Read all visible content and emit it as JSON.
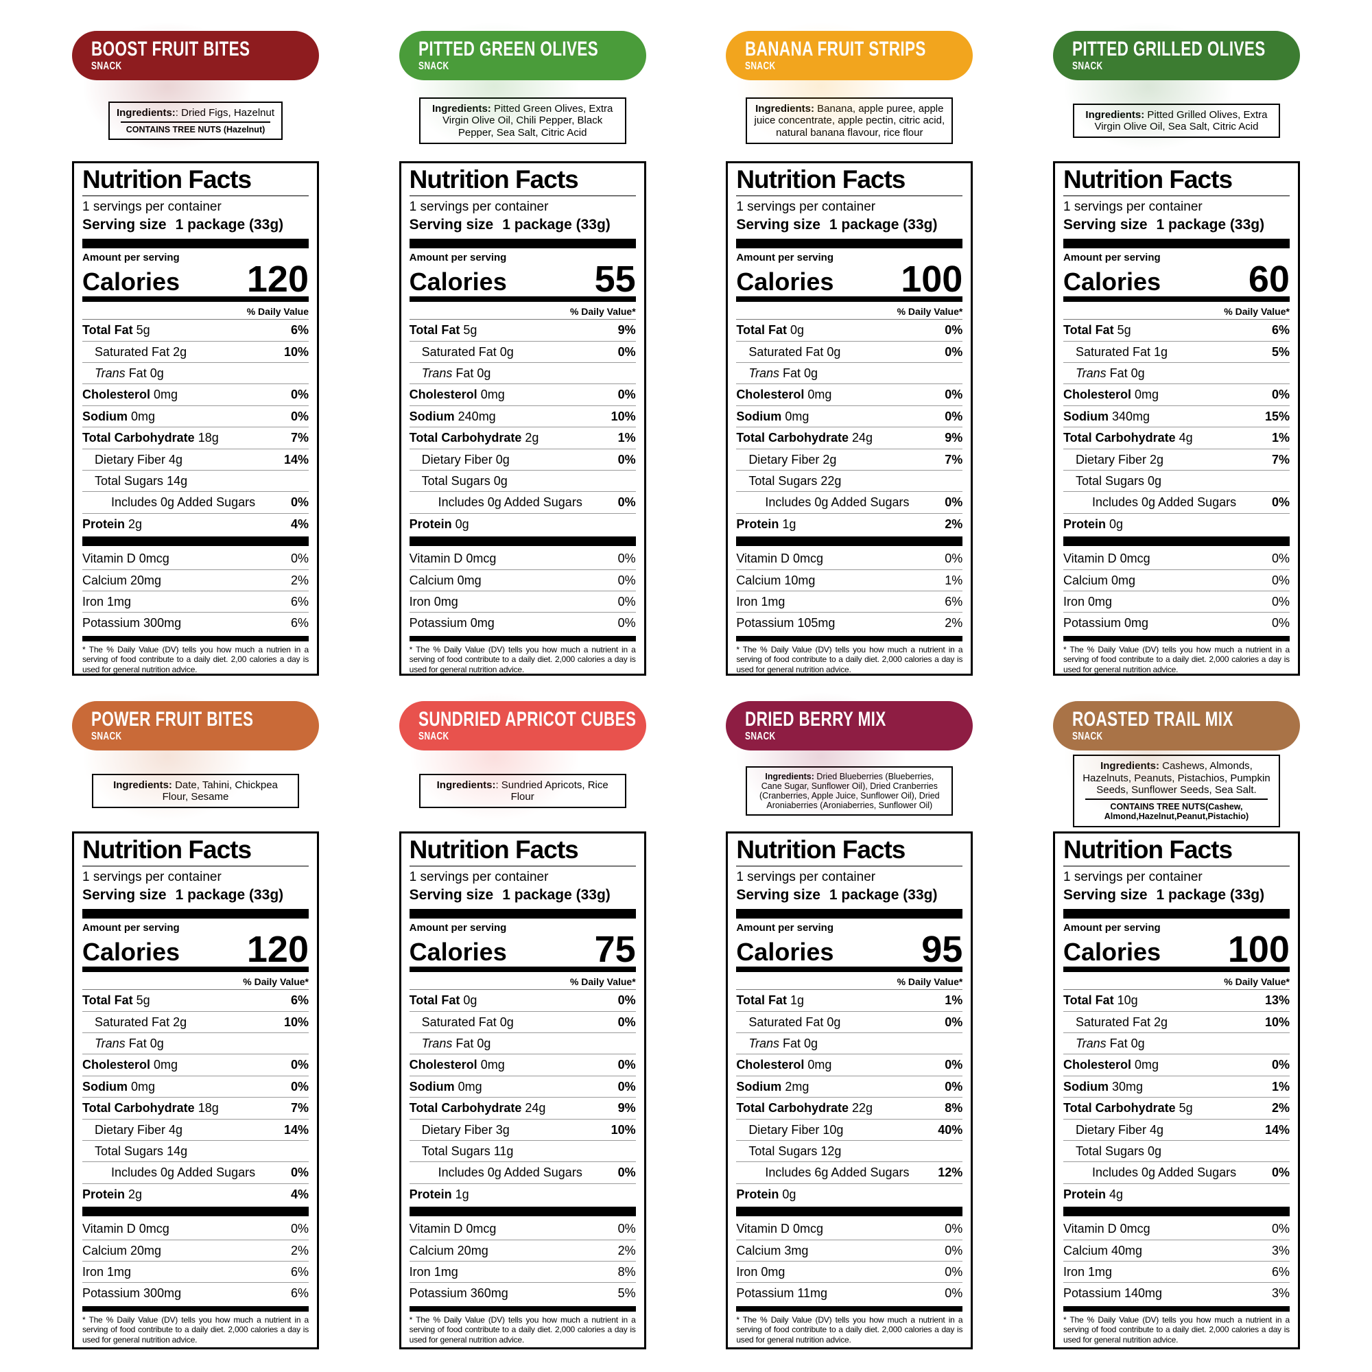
{
  "shared": {
    "snack_tag": "SNACK",
    "ing_label": "Ingredients:",
    "panel_title": "Nutrition Facts",
    "servings_line": "1 servings per container",
    "serving_size_label": "Serving size",
    "serving_size_value": "1 package (33g)",
    "amount_per_serving": "Amount per serving",
    "calories_label": "Calories",
    "dv_header_star": "% Daily Value*",
    "dv_header_plain": "% Daily Value",
    "footnote_standard": "* The % Daily Value (DV) tells you how much a nutrient in a serving of food contribute to a daily diet. 2,000 calories a day is used for general nutrition advice.",
    "footnote_typo": "* The % Daily Value (DV) tells you how much a nutrien in a serving of food contribute to a daily diet. 2,00 calories a day is used for general nutrition advice.",
    "row_defs": [
      {
        "n": "Total Fat",
        "bold": true,
        "ind": 0
      },
      {
        "n": "Saturated Fat",
        "bold": false,
        "ind": 1
      },
      {
        "i": "Trans",
        "n": "Fat",
        "bold": false,
        "ind": 1
      },
      {
        "n": "Cholesterol",
        "bold": true,
        "ind": 0
      },
      {
        "n": "Sodium",
        "bold": true,
        "ind": 0
      },
      {
        "n": "Total Carbohydrate",
        "bold": true,
        "ind": 0
      },
      {
        "n": "Dietary Fiber",
        "bold": false,
        "ind": 1
      },
      {
        "n": "Total Sugars",
        "bold": false,
        "ind": 1
      },
      {
        "n": "Includes",
        "bold": false,
        "ind": 2
      },
      {
        "n": "Protein",
        "bold": true,
        "ind": 0
      }
    ],
    "vit_names": [
      "Vitamin D",
      "Calcium",
      "Iron",
      "Potassium"
    ]
  },
  "labels": [
    {
      "title": "BOOST FRUIT BITES",
      "color": "#8e1c1f",
      "ingredients": ": Dried Figs, Hazelnut",
      "allergen": "CONTAINS TREE NUTS (Hazelnut)",
      "dv_header": "dv_header_plain",
      "footnote": "footnote_typo",
      "calories": "120",
      "rows": [
        {
          "a": "5g",
          "dv": "6%"
        },
        {
          "a": "2g",
          "dv": "10%"
        },
        {
          "a": "0g",
          "dv": ""
        },
        {
          "a": "0mg",
          "dv": "0%"
        },
        {
          "a": "0mg",
          "dv": "0%"
        },
        {
          "a": "18g",
          "dv": "7%"
        },
        {
          "a": "4g",
          "dv": "14%"
        },
        {
          "a": "14g",
          "dv": ""
        },
        {
          "a": "0g Added Sugars",
          "dv": "0%"
        },
        {
          "a": "2g",
          "dv": "4%"
        }
      ],
      "vits": [
        {
          "a": "0mcg",
          "dv": "0%"
        },
        {
          "a": "20mg",
          "dv": "2%"
        },
        {
          "a": "1mg",
          "dv": "6%"
        },
        {
          "a": "300mg",
          "dv": "6%"
        }
      ]
    },
    {
      "title": "PITTED GREEN OLIVES",
      "color": "#4a9c3a",
      "ingredients": " Pitted Green Olives, Extra Virgin Olive Oil, Chili Pepper, Black Pepper, Sea Salt, Citric Acid",
      "allergen": null,
      "dv_header": "dv_header_star",
      "footnote": "footnote_standard",
      "calories": "55",
      "rows": [
        {
          "a": "5g",
          "dv": "9%"
        },
        {
          "a": "0g",
          "dv": "0%"
        },
        {
          "a": "0g",
          "dv": ""
        },
        {
          "a": "0mg",
          "dv": "0%"
        },
        {
          "a": "240mg",
          "dv": "10%"
        },
        {
          "a": "2g",
          "dv": "1%"
        },
        {
          "a": "0g",
          "dv": "0%"
        },
        {
          "a": "0g",
          "dv": ""
        },
        {
          "a": "0g Added Sugars",
          "dv": "0%"
        },
        {
          "a": "0g",
          "dv": ""
        }
      ],
      "vits": [
        {
          "a": "0mcg",
          "dv": "0%"
        },
        {
          "a": "0mg",
          "dv": "0%"
        },
        {
          "a": "0mg",
          "dv": "0%"
        },
        {
          "a": "0mg",
          "dv": "0%"
        }
      ]
    },
    {
      "title": "BANANA FRUIT STRIPS",
      "color": "#f2a51e",
      "ingredients": " Banana, apple puree, apple juice concentrate, apple pectin, citric acid, natural banana flavour, rice flour",
      "allergen": null,
      "dv_header": "dv_header_star",
      "footnote": "footnote_standard",
      "calories": "100",
      "rows": [
        {
          "a": "0g",
          "dv": "0%"
        },
        {
          "a": "0g",
          "dv": "0%"
        },
        {
          "a": "0g",
          "dv": ""
        },
        {
          "a": "0mg",
          "dv": "0%"
        },
        {
          "a": "0mg",
          "dv": "0%"
        },
        {
          "a": "24g",
          "dv": "9%"
        },
        {
          "a": "2g",
          "dv": "7%"
        },
        {
          "a": "22g",
          "dv": ""
        },
        {
          "a": "0g Added Sugars",
          "dv": "0%"
        },
        {
          "a": "1g",
          "dv": "2%"
        }
      ],
      "vits": [
        {
          "a": "0mcg",
          "dv": "0%"
        },
        {
          "a": "10mg",
          "dv": "1%"
        },
        {
          "a": "1mg",
          "dv": "6%"
        },
        {
          "a": "105mg",
          "dv": "2%"
        }
      ]
    },
    {
      "title": "PITTED GRILLED OLIVES",
      "color": "#3c7c31",
      "ingredients": " Pitted Grilled Olives, Extra Virgin Olive Oil, Sea Salt, Citric Acid",
      "allergen": null,
      "dv_header": "dv_header_star",
      "footnote": "footnote_standard",
      "calories": "60",
      "rows": [
        {
          "a": "5g",
          "dv": "6%"
        },
        {
          "a": "1g",
          "dv": "5%"
        },
        {
          "a": "0g",
          "dv": ""
        },
        {
          "a": "0mg",
          "dv": "0%"
        },
        {
          "a": "340mg",
          "dv": "15%"
        },
        {
          "a": "4g",
          "dv": "1%"
        },
        {
          "a": "2g",
          "dv": "7%"
        },
        {
          "a": "0g",
          "dv": ""
        },
        {
          "a": "0g Added Sugars",
          "dv": "0%"
        },
        {
          "a": "0g",
          "dv": ""
        }
      ],
      "vits": [
        {
          "a": "0mcg",
          "dv": "0%"
        },
        {
          "a": "0mg",
          "dv": "0%"
        },
        {
          "a": "0mg",
          "dv": "0%"
        },
        {
          "a": "0mg",
          "dv": "0%"
        }
      ]
    },
    {
      "title": "POWER FRUIT BITES",
      "color": "#c96a38",
      "ingredients": " Date, Tahini, Chickpea Flour, Sesame",
      "allergen": null,
      "dv_header": "dv_header_star",
      "footnote": "footnote_standard",
      "calories": "120",
      "rows": [
        {
          "a": "5g",
          "dv": "6%"
        },
        {
          "a": "2g",
          "dv": "10%"
        },
        {
          "a": "0g",
          "dv": ""
        },
        {
          "a": "0mg",
          "dv": "0%"
        },
        {
          "a": "0mg",
          "dv": "0%"
        },
        {
          "a": "18g",
          "dv": "7%"
        },
        {
          "a": "4g",
          "dv": "14%"
        },
        {
          "a": "14g",
          "dv": ""
        },
        {
          "a": "0g Added Sugars",
          "dv": "0%"
        },
        {
          "a": "2g",
          "dv": "4%"
        }
      ],
      "vits": [
        {
          "a": "0mcg",
          "dv": "0%"
        },
        {
          "a": "20mg",
          "dv": "2%"
        },
        {
          "a": "1mg",
          "dv": "6%"
        },
        {
          "a": "300mg",
          "dv": "6%"
        }
      ]
    },
    {
      "title": "SUNDRIED APRICOT CUBES",
      "color": "#e8524d",
      "ingredients": ": Sundried Apricots, Rice Flour",
      "allergen": null,
      "dv_header": "dv_header_star",
      "footnote": "footnote_standard",
      "calories": "75",
      "rows": [
        {
          "a": "0g",
          "dv": "0%"
        },
        {
          "a": "0g",
          "dv": "0%"
        },
        {
          "a": "0g",
          "dv": ""
        },
        {
          "a": "0mg",
          "dv": "0%"
        },
        {
          "a": "0mg",
          "dv": "0%"
        },
        {
          "a": "24g",
          "dv": "9%"
        },
        {
          "a": "3g",
          "dv": "10%"
        },
        {
          "a": "11g",
          "dv": ""
        },
        {
          "a": "0g Added Sugars",
          "dv": "0%"
        },
        {
          "a": "1g",
          "dv": ""
        }
      ],
      "vits": [
        {
          "a": "0mcg",
          "dv": "0%"
        },
        {
          "a": "20mg",
          "dv": "2%"
        },
        {
          "a": "1mg",
          "dv": "8%"
        },
        {
          "a": "360mg",
          "dv": "5%"
        }
      ]
    },
    {
      "title": "DRIED BERRY MIX",
      "color": "#8e1d43",
      "ingredients": " Dried Blueberries (Blueberries, Cane Sugar, Sunflower Oil), Dried Cranberries (Cranberries, Apple Juice, Sunflower Oil), Dried Aroniaberries (Aroniaberries, Sunflower Oil)",
      "allergen": null,
      "dv_header": "dv_header_star",
      "footnote": "footnote_standard",
      "calories": "95",
      "rows": [
        {
          "a": "1g",
          "dv": "1%"
        },
        {
          "a": "0g",
          "dv": "0%"
        },
        {
          "a": "0g",
          "dv": ""
        },
        {
          "a": "0mg",
          "dv": "0%"
        },
        {
          "a": "2mg",
          "dv": "0%"
        },
        {
          "a": "22g",
          "dv": "8%"
        },
        {
          "a": "10g",
          "dv": "40%"
        },
        {
          "a": "12g",
          "dv": ""
        },
        {
          "a": "6g Added Sugars",
          "dv": "12%"
        },
        {
          "a": "0g",
          "dv": ""
        }
      ],
      "vits": [
        {
          "a": "0mcg",
          "dv": "0%"
        },
        {
          "a": "3mg",
          "dv": "0%"
        },
        {
          "a": "0mg",
          "dv": "0%"
        },
        {
          "a": "11mg",
          "dv": "0%"
        }
      ]
    },
    {
      "title": "ROASTED TRAIL MIX",
      "color": "#a97347",
      "ingredients": " Cashews, Almonds, Hazelnuts, Peanuts, Pistachios, Pumpkin Seeds, Sunflower Seeds, Sea Salt.",
      "allergen": "CONTAINS TREE NUTS(Cashew, Almond,Hazelnut,Peanut,Pistachio)",
      "dv_header": "dv_header_star",
      "footnote": "footnote_standard",
      "calories": "100",
      "rows": [
        {
          "a": "10g",
          "dv": "13%"
        },
        {
          "a": "2g",
          "dv": "10%"
        },
        {
          "a": "0g",
          "dv": ""
        },
        {
          "a": "0mg",
          "dv": "0%"
        },
        {
          "a": "30mg",
          "dv": "1%"
        },
        {
          "a": "5g",
          "dv": "2%"
        },
        {
          "a": "4g",
          "dv": "14%"
        },
        {
          "a": "0g",
          "dv": ""
        },
        {
          "a": "0g Added Sugars",
          "dv": "0%"
        },
        {
          "a": "4g",
          "dv": ""
        }
      ],
      "vits": [
        {
          "a": "0mcg",
          "dv": "0%"
        },
        {
          "a": "40mg",
          "dv": "3%"
        },
        {
          "a": "1mg",
          "dv": "6%"
        },
        {
          "a": "140mg",
          "dv": "3%"
        }
      ]
    }
  ]
}
